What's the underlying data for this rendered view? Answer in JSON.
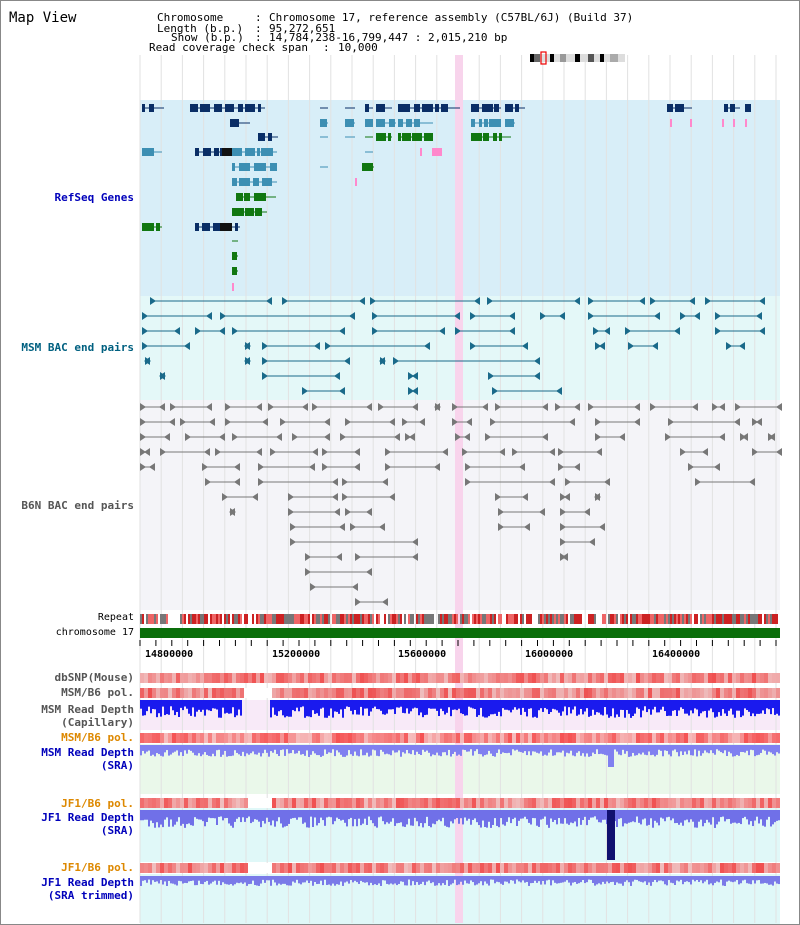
{
  "window": {
    "title": "Map View"
  },
  "info": {
    "chromosome_label": "Chromosome",
    "chromosome_value": "Chromosome 17, reference assembly (C57BL/6J) (Build 37)",
    "length_label": "Length (b.p.)",
    "length_value": "95,272,651",
    "show_label": "Show (b.p.)",
    "show_value": "14,784,238-16,799,447 : 2,015,210 bp",
    "coverage_label": "Read coverage check span",
    "coverage_value": "10,000"
  },
  "tracks": {
    "refseq": {
      "label": "RefSeq Genes",
      "color": "#0000bb"
    },
    "msm_bac": {
      "label": "MSM BAC end pairs",
      "color": "#006080"
    },
    "b6n_bac": {
      "label": "B6N BAC end pairs",
      "color": "#555555"
    },
    "repeat": {
      "label": "Repeat"
    },
    "chromosome": {
      "label": "chromosome 17"
    },
    "dbsnp": {
      "label": "dbSNP(Mouse)"
    },
    "msm_b6_pol": {
      "label": "MSM/B6 pol."
    },
    "msm_depth_cap": {
      "label_line1": "MSM Read Depth",
      "label_line2": "(Capillary)"
    },
    "msm_b6_pol2": {
      "label": "MSM/B6 pol."
    },
    "msm_depth_sra": {
      "label_line1": "MSM Read Depth",
      "label_line2": "(SRA)"
    },
    "jf1_b6_pol": {
      "label": "JF1/B6 pol."
    },
    "jf1_depth_sra": {
      "label_line1": "JF1 Read Depth",
      "label_line2": "(SRA)"
    },
    "jf1_b6_pol2": {
      "label": "JF1/B6 pol."
    },
    "jf1_depth_trim": {
      "label_line1": "JF1 Read Depth",
      "label_line2": "(SRA trimmed)"
    }
  },
  "axis": {
    "range_bp": [
      14784238,
      16799447
    ],
    "tick_labels": [
      "14800000",
      "15200000",
      "15600000",
      "16000000",
      "16400000"
    ],
    "tick_values": [
      14800000,
      15200000,
      15600000,
      16000000,
      16400000
    ]
  },
  "colors": {
    "refseq_dark": "#0a2e66",
    "refseq_mid": "#3d8fb3",
    "refseq_green": "#117711",
    "refseq_pink": "#ff88cc",
    "highlight": "#f8d4ec",
    "depth_blue": "#1a1aee",
    "depth_light": "#8080f0",
    "pol_red": "#ee3333",
    "orange_label": "#dd8800"
  }
}
